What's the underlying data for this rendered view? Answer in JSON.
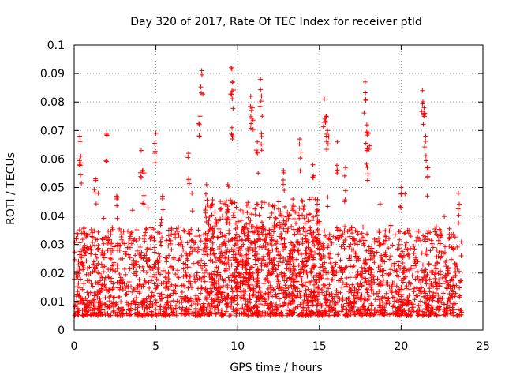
{
  "chart_data": {
    "type": "scatter",
    "title": "Day 320 of 2017, Rate Of TEC Index for receiver ptld",
    "xlabel": "GPS time / hours",
    "ylabel": "ROTI / TECUs",
    "xlim": [
      0,
      25
    ],
    "ylim": [
      0,
      0.1
    ],
    "xticks": [
      0,
      5,
      10,
      15,
      20,
      25
    ],
    "yticks": [
      0,
      0.01,
      0.02,
      0.03,
      0.04,
      0.05,
      0.06,
      0.07,
      0.08,
      0.09,
      0.1
    ],
    "grid": true,
    "marker": "plus",
    "series_color": "#ff0000",
    "baseline_range": [
      0.005,
      0.03
    ],
    "x_range": [
      0,
      23.7
    ],
    "peaks": [
      {
        "x": 0.35,
        "y": 0.068
      },
      {
        "x": 0.4,
        "y": 0.061
      },
      {
        "x": 1.3,
        "y": 0.053
      },
      {
        "x": 2.0,
        "y": 0.069
      },
      {
        "x": 2.6,
        "y": 0.047
      },
      {
        "x": 4.1,
        "y": 0.063
      },
      {
        "x": 4.2,
        "y": 0.056
      },
      {
        "x": 5.0,
        "y": 0.069
      },
      {
        "x": 5.4,
        "y": 0.047
      },
      {
        "x": 7.0,
        "y": 0.062
      },
      {
        "x": 7.7,
        "y": 0.075
      },
      {
        "x": 7.8,
        "y": 0.091
      },
      {
        "x": 8.1,
        "y": 0.051
      },
      {
        "x": 9.4,
        "y": 0.051
      },
      {
        "x": 9.6,
        "y": 0.092
      },
      {
        "x": 9.7,
        "y": 0.087
      },
      {
        "x": 9.65,
        "y": 0.071
      },
      {
        "x": 10.8,
        "y": 0.082
      },
      {
        "x": 10.9,
        "y": 0.078
      },
      {
        "x": 11.4,
        "y": 0.088
      },
      {
        "x": 11.5,
        "y": 0.075
      },
      {
        "x": 11.2,
        "y": 0.066
      },
      {
        "x": 12.8,
        "y": 0.056
      },
      {
        "x": 13.8,
        "y": 0.067
      },
      {
        "x": 14.6,
        "y": 0.058
      },
      {
        "x": 15.3,
        "y": 0.081
      },
      {
        "x": 15.4,
        "y": 0.075
      },
      {
        "x": 15.5,
        "y": 0.07
      },
      {
        "x": 16.1,
        "y": 0.066
      },
      {
        "x": 16.6,
        "y": 0.057
      },
      {
        "x": 17.8,
        "y": 0.087
      },
      {
        "x": 17.9,
        "y": 0.072
      },
      {
        "x": 18.0,
        "y": 0.069
      },
      {
        "x": 17.9,
        "y": 0.063
      },
      {
        "x": 20.0,
        "y": 0.05
      },
      {
        "x": 21.3,
        "y": 0.084
      },
      {
        "x": 21.4,
        "y": 0.078
      },
      {
        "x": 21.5,
        "y": 0.068
      },
      {
        "x": 21.6,
        "y": 0.057
      },
      {
        "x": 23.5,
        "y": 0.048
      }
    ]
  }
}
